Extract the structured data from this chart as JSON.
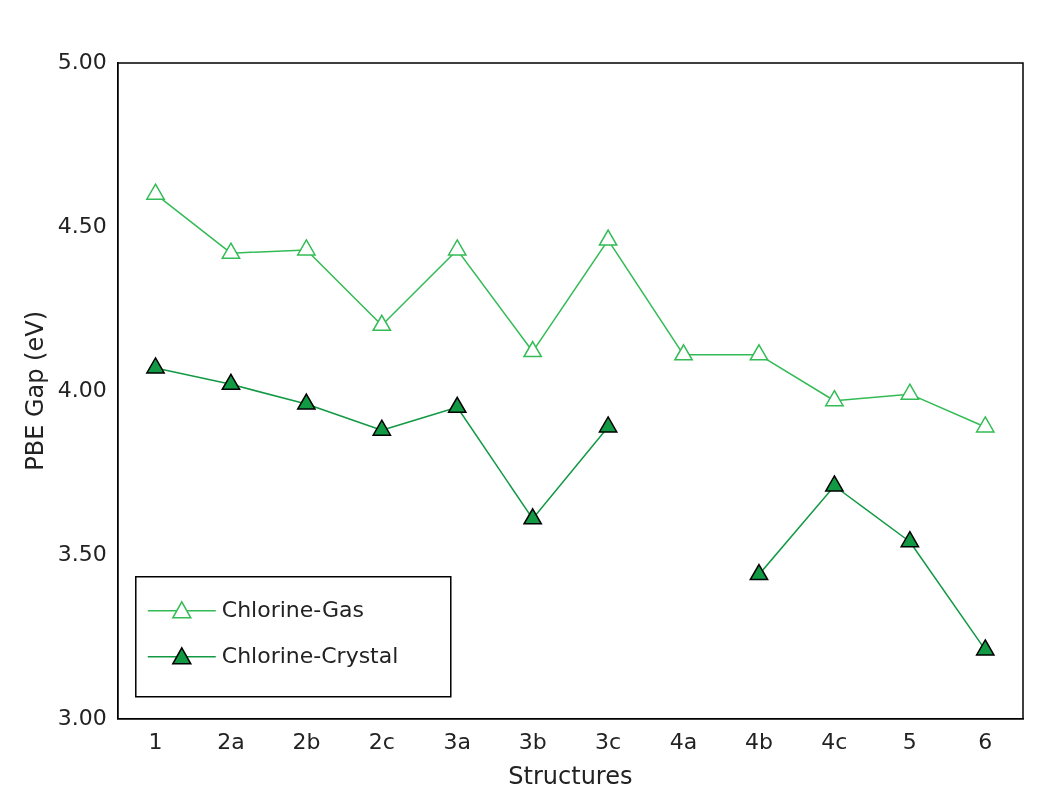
{
  "chart_data": {
    "type": "line",
    "xlabel": "Structures",
    "ylabel": "PBE Gap (eV)",
    "categories": [
      "1",
      "2a",
      "2b",
      "2c",
      "3a",
      "3b",
      "3c",
      "4a",
      "4b",
      "4c",
      "5",
      "6"
    ],
    "series": [
      {
        "name": "Chlorine-Gas",
        "color": "#33bb55",
        "values": [
          4.6,
          4.42,
          4.43,
          4.2,
          4.43,
          4.12,
          4.46,
          4.11,
          4.11,
          3.97,
          3.99,
          3.89
        ]
      },
      {
        "name": "Chlorine-Crystal",
        "color": "#119944",
        "values": [
          4.07,
          4.02,
          3.96,
          3.88,
          3.95,
          3.61,
          3.89,
          null,
          3.44,
          3.71,
          3.54,
          3.21
        ]
      }
    ],
    "ylim": [
      3,
      5
    ],
    "yticks": [
      {
        "value": 3,
        "label": "3.00"
      },
      {
        "value": 3.5,
        "label": "3.50"
      },
      {
        "value": 4,
        "label": "4.00"
      },
      {
        "value": 4.5,
        "label": "4.50"
      },
      {
        "value": 5,
        "label": "5.00"
      }
    ],
    "grid": false,
    "legend": "bottom left",
    "marker": "triangle",
    "line_style": "solid"
  }
}
